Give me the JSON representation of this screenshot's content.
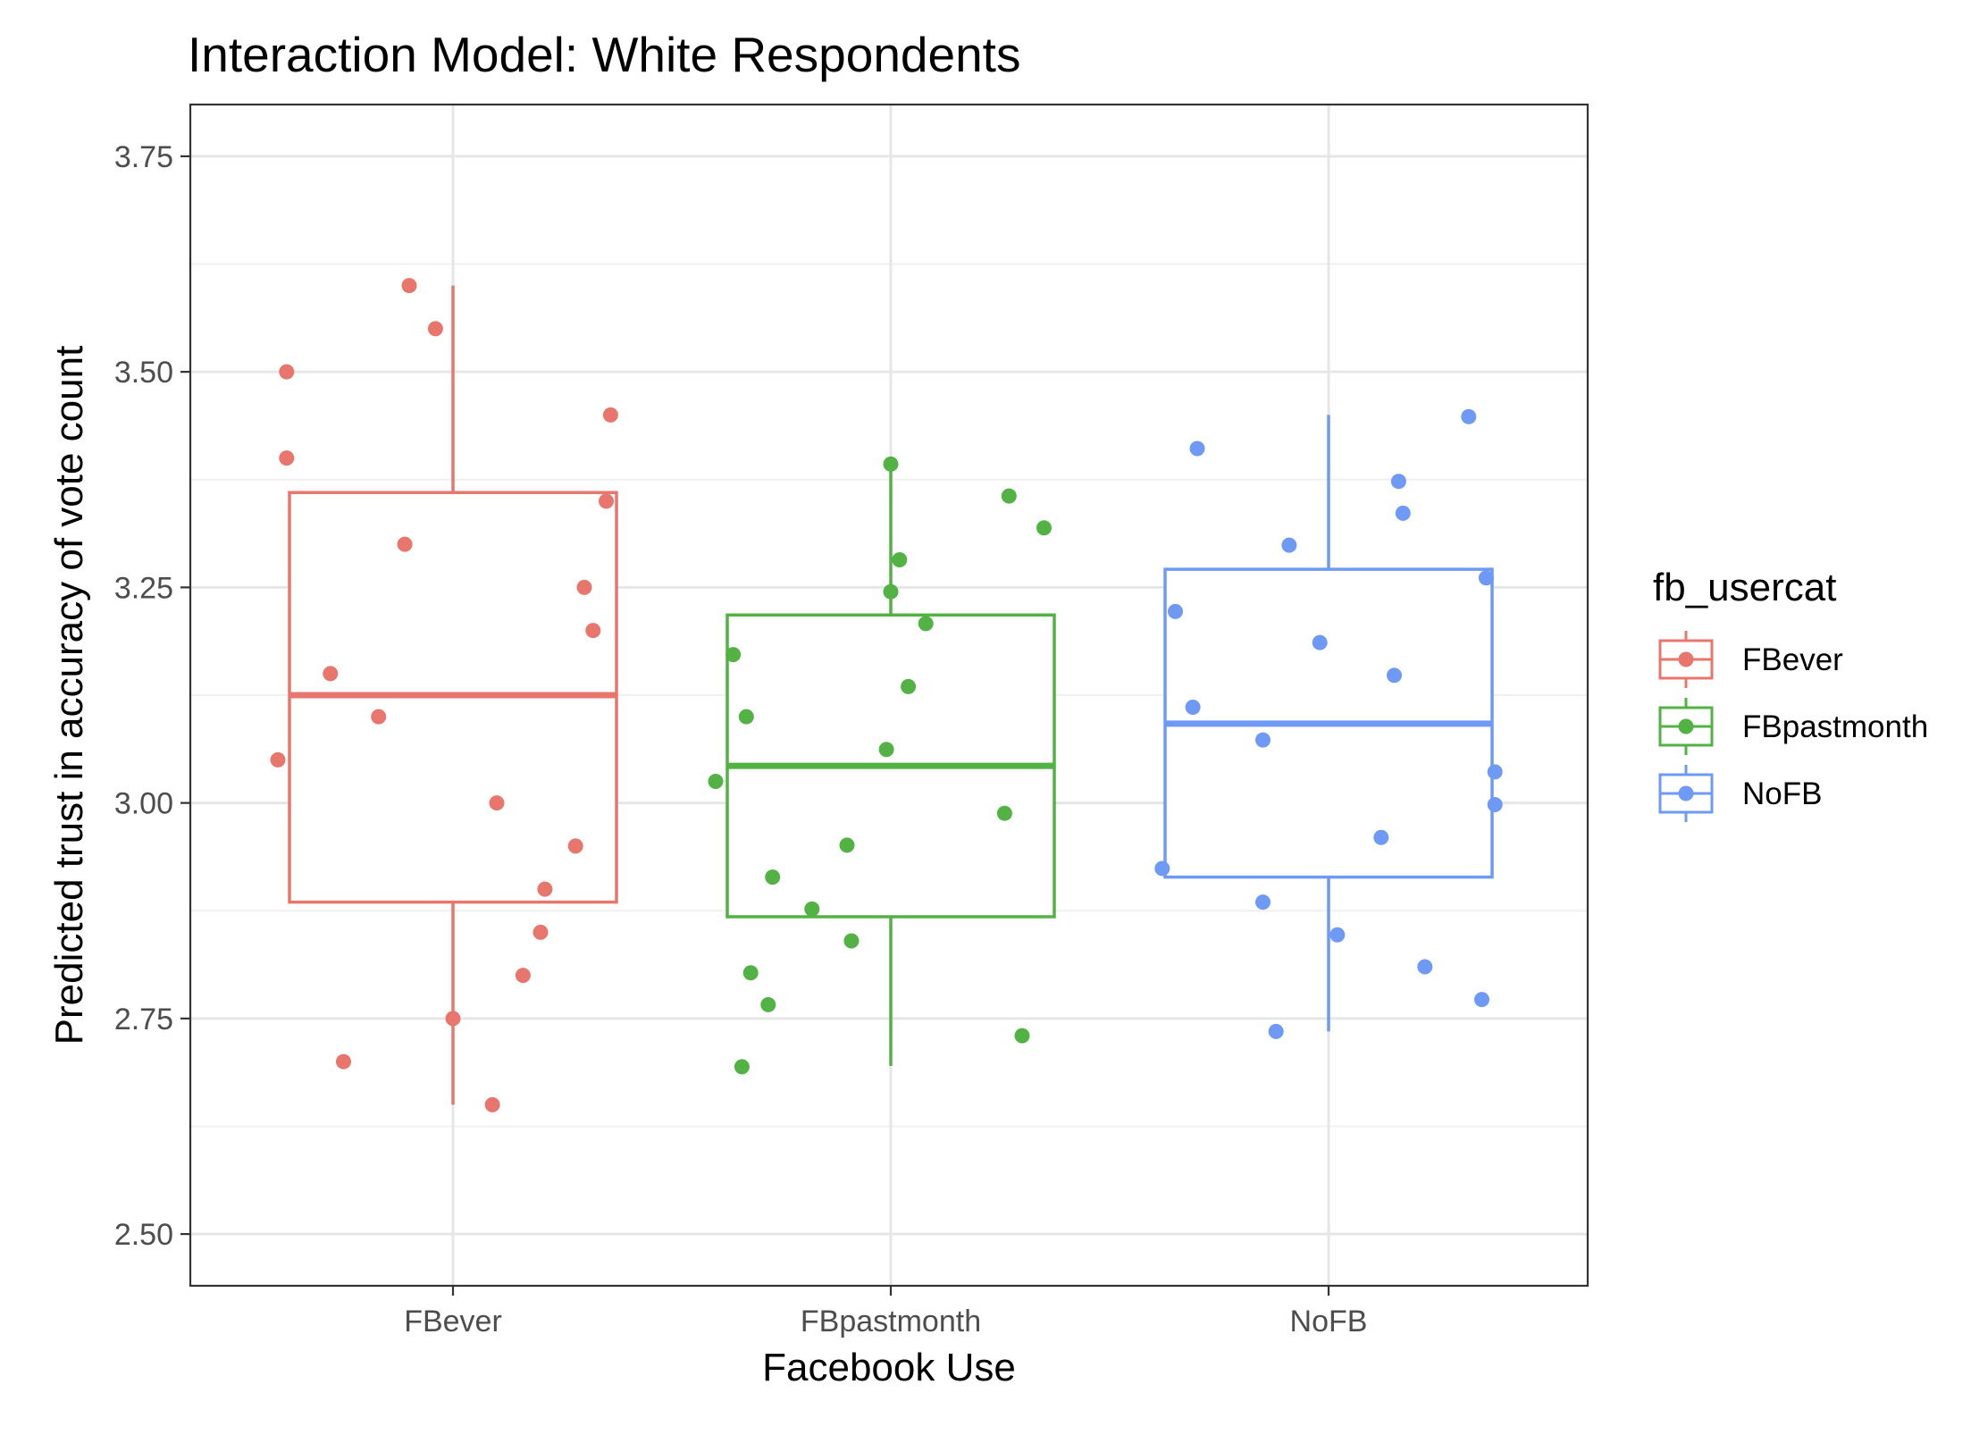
{
  "chart_data": {
    "type": "box",
    "title": "Interaction Model: White Respondents",
    "xlabel": "Facebook Use",
    "ylabel": "Predicted trust in accuracy of vote count",
    "ylim": [
      2.44,
      3.81
    ],
    "yticks": [
      2.5,
      2.75,
      3.0,
      3.25,
      3.5,
      3.75
    ],
    "ytick_labels": [
      "2.50",
      "2.75",
      "3.00",
      "3.25",
      "3.50",
      "3.75"
    ],
    "categories": [
      "FBever",
      "FBpastmonth",
      "NoFB"
    ],
    "grid": true,
    "legend": {
      "title": "fb_usercat",
      "position": "right",
      "entries": [
        "FBever",
        "FBpastmonth",
        "NoFB"
      ]
    },
    "series": [
      {
        "name": "FBever",
        "color": "#E8766D",
        "box": {
          "min": 2.65,
          "q1": 2.885,
          "median": 3.125,
          "q3": 3.36,
          "max": 3.6
        },
        "points": [
          {
            "x": -0.4,
            "y": 3.05
          },
          {
            "x": -0.38,
            "y": 3.5
          },
          {
            "x": -0.38,
            "y": 3.4
          },
          {
            "x": -0.28,
            "y": 3.15
          },
          {
            "x": -0.25,
            "y": 2.7
          },
          {
            "x": -0.17,
            "y": 3.1
          },
          {
            "x": -0.11,
            "y": 3.3
          },
          {
            "x": -0.1,
            "y": 3.6
          },
          {
            "x": 0.0,
            "y": 2.75
          },
          {
            "x": -0.04,
            "y": 3.55
          },
          {
            "x": 0.09,
            "y": 2.65
          },
          {
            "x": 0.1,
            "y": 3.0
          },
          {
            "x": 0.16,
            "y": 2.8
          },
          {
            "x": 0.2,
            "y": 2.85
          },
          {
            "x": 0.21,
            "y": 2.9
          },
          {
            "x": 0.28,
            "y": 2.95
          },
          {
            "x": 0.3,
            "y": 3.25
          },
          {
            "x": 0.32,
            "y": 3.2
          },
          {
            "x": 0.35,
            "y": 3.35
          },
          {
            "x": 0.36,
            "y": 3.45
          }
        ]
      },
      {
        "name": "FBpastmonth",
        "color": "#52B244",
        "box": {
          "min": 2.695,
          "q1": 2.868,
          "median": 3.043,
          "q3": 3.218,
          "max": 3.393
        },
        "points": [
          {
            "x": -0.4,
            "y": 3.025
          },
          {
            "x": -0.36,
            "y": 3.172
          },
          {
            "x": -0.34,
            "y": 2.694
          },
          {
            "x": -0.33,
            "y": 3.1
          },
          {
            "x": -0.32,
            "y": 2.803
          },
          {
            "x": -0.28,
            "y": 2.766
          },
          {
            "x": -0.27,
            "y": 2.914
          },
          {
            "x": -0.18,
            "y": 2.877
          },
          {
            "x": -0.1,
            "y": 2.951
          },
          {
            "x": -0.09,
            "y": 2.84
          },
          {
            "x": -0.01,
            "y": 3.062
          },
          {
            "x": 0.0,
            "y": 3.393
          },
          {
            "x": 0.0,
            "y": 3.245
          },
          {
            "x": 0.02,
            "y": 3.282
          },
          {
            "x": 0.04,
            "y": 3.135
          },
          {
            "x": 0.08,
            "y": 3.208
          },
          {
            "x": 0.26,
            "y": 2.988
          },
          {
            "x": 0.27,
            "y": 3.356
          },
          {
            "x": 0.3,
            "y": 2.73
          },
          {
            "x": 0.35,
            "y": 3.319
          }
        ]
      },
      {
        "name": "NoFB",
        "color": "#6E99F5",
        "box": {
          "min": 2.735,
          "q1": 2.914,
          "median": 3.092,
          "q3": 3.271,
          "max": 3.45
        },
        "points": [
          {
            "x": -0.38,
            "y": 2.924
          },
          {
            "x": -0.35,
            "y": 3.222
          },
          {
            "x": -0.31,
            "y": 3.111
          },
          {
            "x": -0.3,
            "y": 3.411
          },
          {
            "x": -0.15,
            "y": 2.885
          },
          {
            "x": -0.15,
            "y": 3.073
          },
          {
            "x": -0.12,
            "y": 2.735
          },
          {
            "x": -0.09,
            "y": 3.299
          },
          {
            "x": 0.02,
            "y": 2.847
          },
          {
            "x": -0.02,
            "y": 3.186
          },
          {
            "x": 0.12,
            "y": 2.96
          },
          {
            "x": 0.15,
            "y": 3.148
          },
          {
            "x": 0.16,
            "y": 3.373
          },
          {
            "x": 0.17,
            "y": 3.336
          },
          {
            "x": 0.22,
            "y": 2.81
          },
          {
            "x": 0.32,
            "y": 3.448
          },
          {
            "x": 0.35,
            "y": 2.772
          },
          {
            "x": 0.36,
            "y": 3.261
          },
          {
            "x": 0.38,
            "y": 3.036
          },
          {
            "x": 0.38,
            "y": 2.998
          }
        ]
      }
    ]
  }
}
